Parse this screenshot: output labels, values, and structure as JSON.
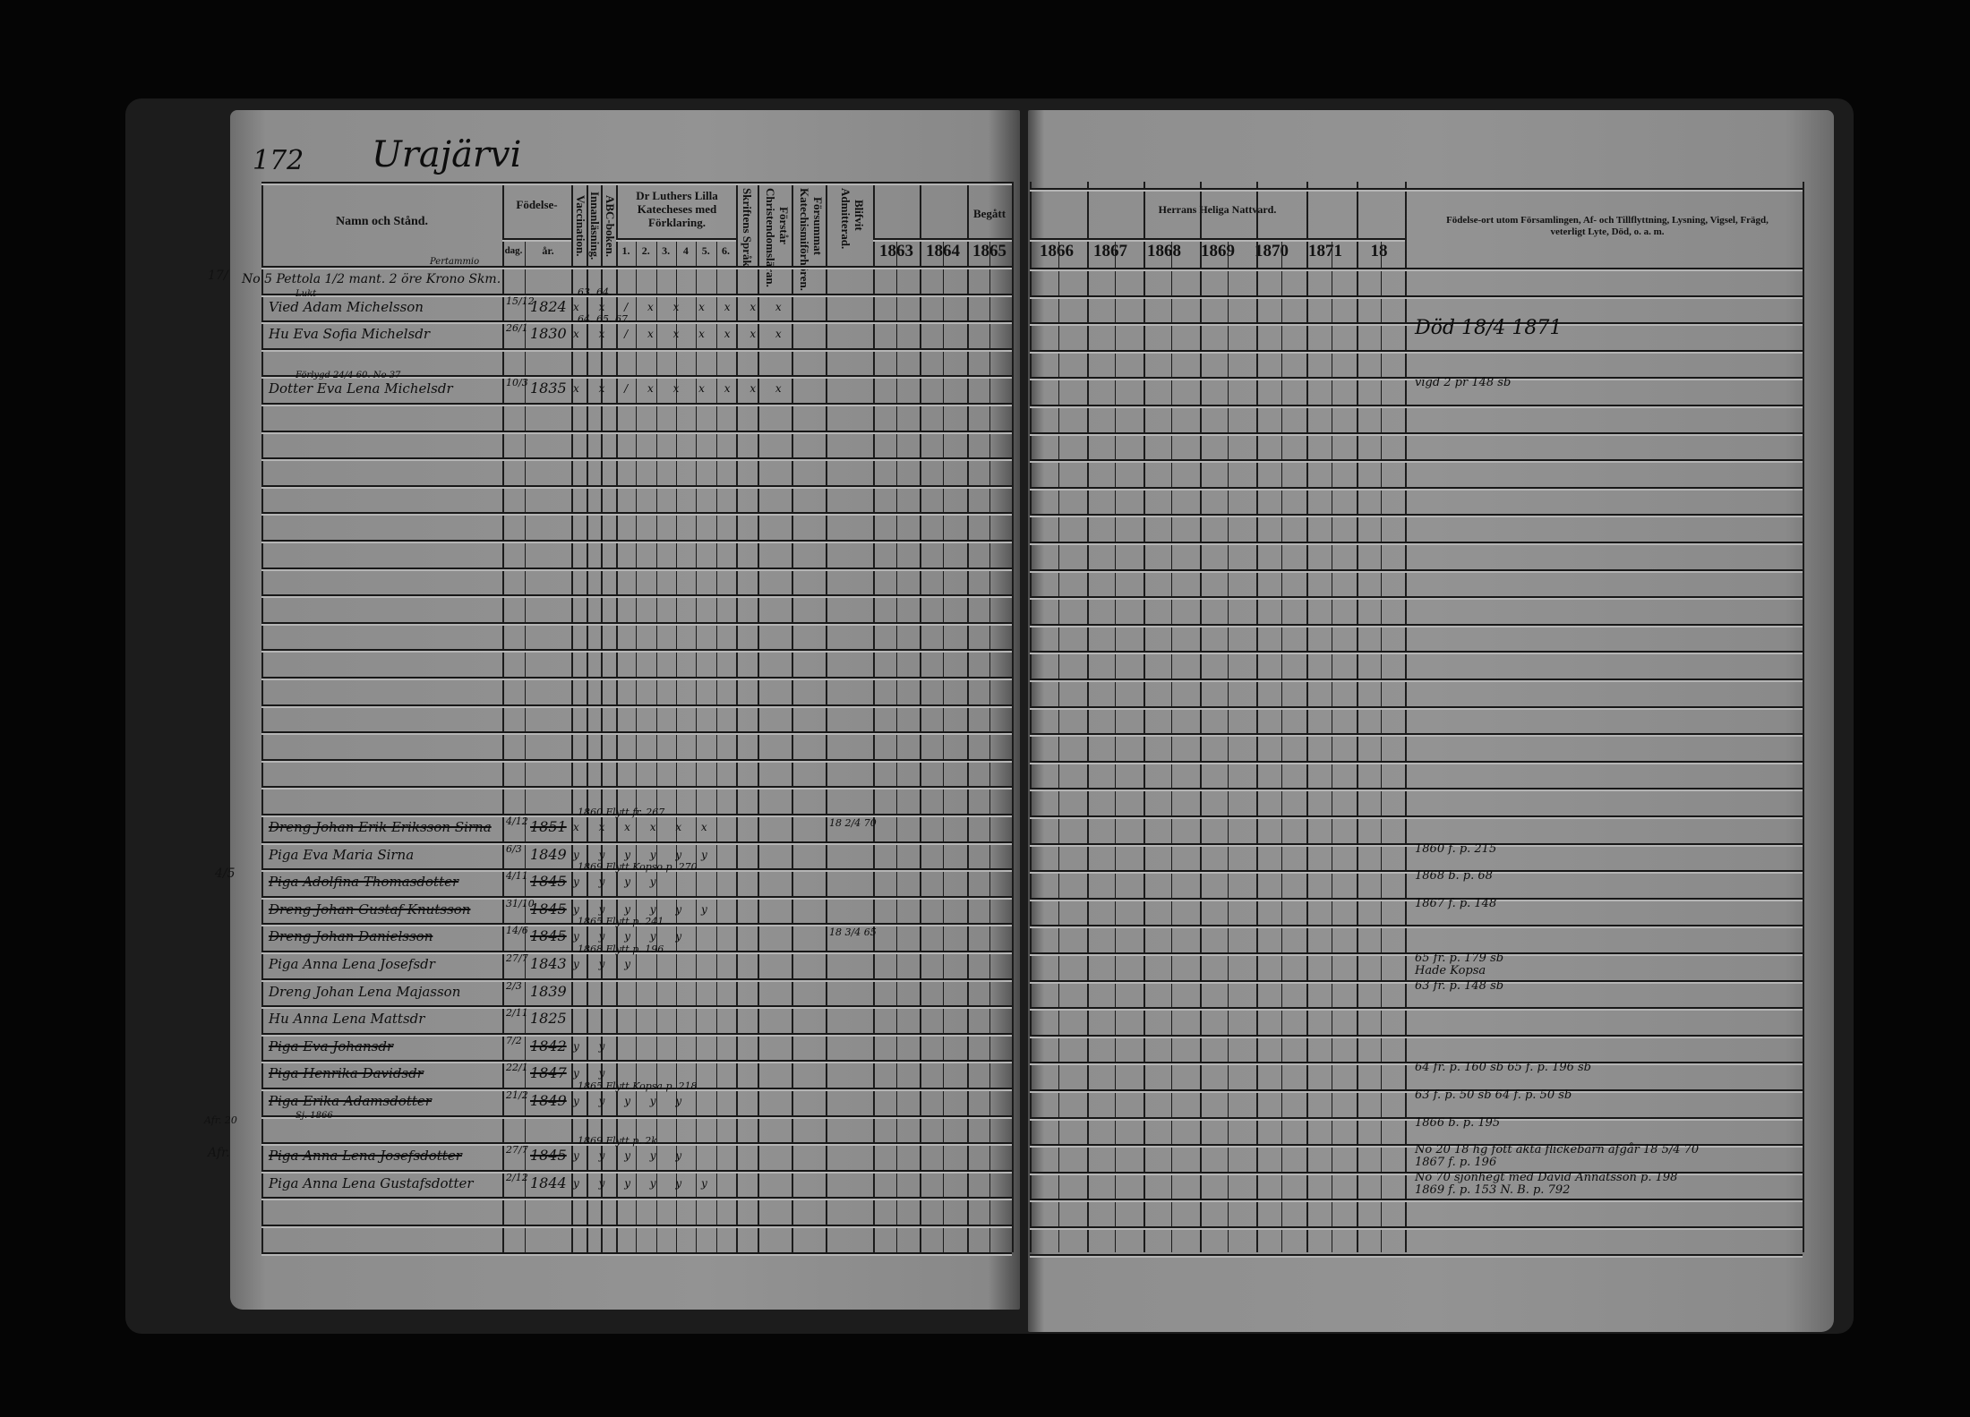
{
  "left_page": {
    "page_number": "172",
    "village": "Urajärvi",
    "headers": {
      "name": "Namn och Stånd.",
      "birth": "Födelse-",
      "birth_day": "dag.",
      "birth_year": "år.",
      "vaccination": "Vaccination.",
      "reading": "Innanläsning.",
      "abc": "ABC-boken.",
      "catechism": "Dr Luthers Lilla Katecheses med Förklaring.",
      "catechism_parts": [
        "1.",
        "2.",
        "3.",
        "4",
        "5.",
        "6."
      ],
      "scripture_language": "Skriftens Språk.",
      "understands": "Förstår Christendomsläran.",
      "missed": "Försummat Katechismiförhören.",
      "admitted": "Blifvit Admitterad.",
      "begatt": "Begått",
      "years": [
        "1863",
        "1864",
        "1865"
      ]
    },
    "margin_notes": [
      "17/",
      "4/5",
      "Afr. 20",
      "Afr."
    ]
  },
  "right_page": {
    "headers": {
      "communion": "Herrans Heliga Nattvard.",
      "years": [
        "1866",
        "1867",
        "1868",
        "1869",
        "1870",
        "1871",
        "18"
      ],
      "remarks": "Födelse-ort utom Församlingen, Af- och Tillflyttning, Lysning, Vigsel, Frägd, veterligt Lyte, Död, o. a. m."
    }
  },
  "rows": [
    {
      "name": "No 5 Pettola 1/2 mant. 2 öre Krono Skm.",
      "above": "Pertammio"
    },
    {
      "above": "Lukt",
      "name": "Vied Adam Michelsson",
      "dag": "15/12",
      "ar": "1824",
      "cat": "x x / x x x x x x",
      "catnote": "63. 64."
    },
    {
      "name": "Hu Eva Sofia Michelsdr",
      "dag": "26/1",
      "ar": "1830",
      "cat": "x x / x x x x x x",
      "catnote": "64. 65. 67.",
      "notes": [
        "Död 18/4 1871"
      ]
    },
    {},
    {
      "above": "Förlygd 24/4 60. No 37",
      "name": "Dotter Eva Lena Michelsdr",
      "dag": "10/3",
      "ar": "1835",
      "cat": "x x / x x x x x x",
      "notes": [
        "vigd 2 pr 148 sb"
      ]
    },
    {},
    {},
    {},
    {},
    {},
    {},
    {},
    {},
    {},
    {},
    {},
    {},
    {},
    {},
    {},
    {
      "name": "Dreng Johan Erik Eriksson Sirna",
      "struck": true,
      "dag": "4/12",
      "ar": "1851",
      "cat": "x x x x x x",
      "catnote": "1860 Flytt fr. 267",
      "adm": "18 2/4 70"
    },
    {
      "name": "Piga Eva Maria Sirna",
      "dag": "6/3",
      "ar": "1849",
      "cat": "y y y y y y",
      "notes": [
        "1860 f. p. 215"
      ]
    },
    {
      "name": "Piga Adolfina Thomasdotter",
      "struck": true,
      "dag": "4/11",
      "ar": "1845",
      "cat": "y y y y",
      "catnote": "1869 Flytt Kopso p. 270",
      "notes": [
        "1868 b. p. 68"
      ]
    },
    {
      "name": "Dreng Johan Gustaf Knutsson",
      "struck": true,
      "dag": "31/10",
      "ar": "1845",
      "cat": "y y y y y y",
      "notes": [
        "1867 f. p. 148"
      ]
    },
    {
      "name": "Dreng Johan Danielsson",
      "struck": true,
      "dag": "14/6",
      "ar": "1845",
      "cat": "y y y y y",
      "catnote": "1865 Flytt p. 241",
      "adm": "18 3/4 65"
    },
    {
      "name": "Piga Anna Lena Josefsdr",
      "dag": "27/7",
      "ar": "1843",
      "cat": "y y y",
      "catnote": "1868 Flytt p. 196",
      "notes": [
        "65 fr. p. 179 sb",
        "Hade Kopsa"
      ]
    },
    {
      "name": "Dreng Johan Lena Majasson",
      "dag": "2/3",
      "ar": "1839",
      "notes": [
        "63 fr. p. 148 sb"
      ]
    },
    {
      "name": "Hu Anna Lena Mattsdr",
      "dag": "2/11",
      "ar": "1825"
    },
    {
      "name": "Piga Eva Johansdr",
      "struck": true,
      "dag": "7/2",
      "ar": "1842",
      "cat": "y y"
    },
    {
      "name": "Piga Henrika Davidsdr",
      "struck": true,
      "dag": "22/1",
      "ar": "1847",
      "cat": "y y",
      "notes": [
        "64 fr. p. 160 sb 65 f. p. 196 sb"
      ]
    },
    {
      "name": "Piga Erika Adamsdotter",
      "struck": true,
      "dag": "21/2",
      "ar": "1849",
      "cat": "y y y y y",
      "catnote": "1865 Flytt Kopsa p. 218",
      "notes": [
        "63 f. p. 50 sb 64 f. p. 50 sb"
      ]
    },
    {
      "above": "Sj. 1866",
      "notes": [
        "1866 b. p. 195"
      ]
    },
    {
      "name": "Piga Anna Lena Josefsdotter",
      "struck": true,
      "dag": "27/7",
      "ar": "1845",
      "cat": "y y y y y",
      "catnote": "1869 Flytt p. 2k",
      "notes": [
        "No 20 18 hg fött äkta flickebarn afgår 18 5/4 70",
        "1867 f. p. 196"
      ]
    },
    {
      "name": "Piga Anna Lena Gustafsdotter",
      "dag": "2/12",
      "ar": "1844",
      "cat": "y y y y y y",
      "notes": [
        "No 70 sjönhegt med David Annatsson p. 198",
        "1869 f. p. 153      N. B. p. 792"
      ]
    },
    {},
    {}
  ]
}
